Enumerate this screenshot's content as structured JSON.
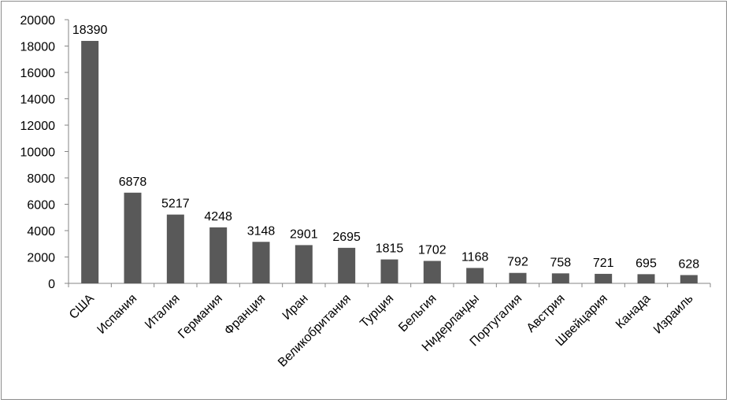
{
  "chart_data": {
    "type": "bar",
    "categories": [
      "США",
      "Испания",
      "Италия",
      "Германия",
      "Франция",
      "Иран",
      "Великобритания",
      "Турция",
      "Бельгия",
      "Нидерланды",
      "Португалия",
      "Австрия",
      "Швейцария",
      "Канада",
      "Израиль"
    ],
    "values": [
      18390,
      6878,
      5217,
      4248,
      3148,
      2901,
      2695,
      1815,
      1702,
      1168,
      792,
      758,
      721,
      695,
      628
    ],
    "data_labels": [
      "18390",
      "6878",
      "5217",
      "4248",
      "3148",
      "2901",
      "2695",
      "1815",
      "1702",
      "1168",
      "792",
      "758",
      "721",
      "695",
      "628"
    ],
    "y_ticks": [
      "0",
      "2000",
      "4000",
      "6000",
      "8000",
      "10000",
      "12000",
      "14000",
      "16000",
      "18000",
      "20000"
    ],
    "ylim": [
      0,
      20000
    ],
    "title": "",
    "xlabel": "",
    "ylabel": "",
    "grid": false,
    "legend": "none",
    "bar_color": "#595959",
    "axis_color": "#868686"
  }
}
